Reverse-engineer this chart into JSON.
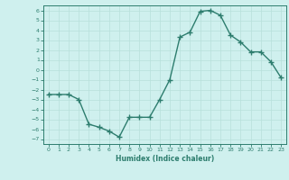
{
  "x": [
    0,
    1,
    2,
    3,
    4,
    5,
    6,
    7,
    8,
    9,
    10,
    11,
    12,
    13,
    14,
    15,
    16,
    17,
    18,
    19,
    20,
    21,
    22,
    23
  ],
  "y": [
    -2.5,
    -2.5,
    -2.5,
    -3.0,
    -5.5,
    -5.8,
    -6.2,
    -6.8,
    -4.8,
    -4.8,
    -4.8,
    -3.0,
    -1.0,
    3.3,
    3.8,
    5.9,
    6.0,
    5.5,
    3.5,
    2.8,
    1.8,
    1.8,
    0.8,
    -0.8
  ],
  "color": "#2d7d6e",
  "bg_color": "#cff0ee",
  "grid_color": "#b8e0db",
  "xlabel": "Humidex (Indice chaleur)",
  "ylim": [
    -7.5,
    6.5
  ],
  "xlim": [
    -0.5,
    23.5
  ],
  "yticks": [
    -7,
    -6,
    -5,
    -4,
    -3,
    -2,
    -1,
    0,
    1,
    2,
    3,
    4,
    5,
    6
  ],
  "xticks": [
    0,
    1,
    2,
    3,
    4,
    5,
    6,
    7,
    8,
    9,
    10,
    11,
    12,
    13,
    14,
    15,
    16,
    17,
    18,
    19,
    20,
    21,
    22,
    23
  ],
  "marker": "+",
  "markersize": 4,
  "linewidth": 1.0
}
